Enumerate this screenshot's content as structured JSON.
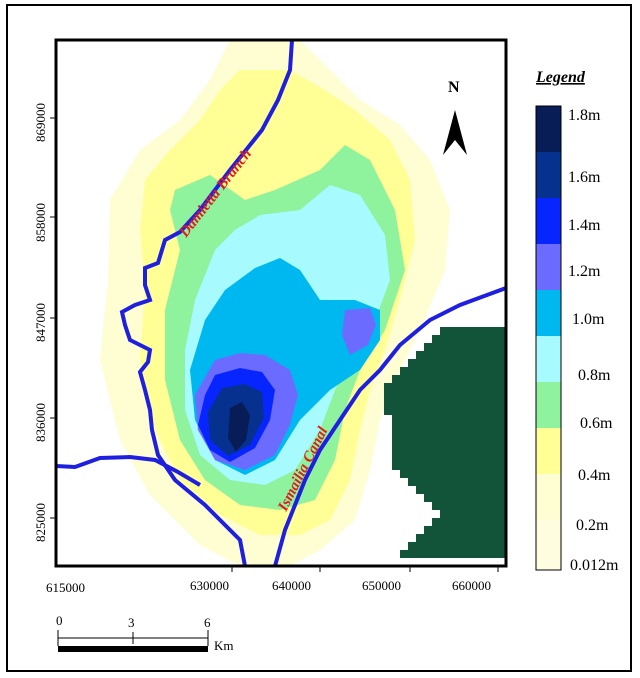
{
  "map": {
    "north_label": "N",
    "x_ticks": [
      "615000",
      "630000",
      "640000",
      "650000",
      "660000"
    ],
    "y_ticks": [
      "869000",
      "858000",
      "847000",
      "836000",
      "825000"
    ],
    "rivers": {
      "damietta": "Damietta Branch",
      "ismailia": "Ismailia Canal"
    }
  },
  "legend": {
    "title": "Legend",
    "items": [
      {
        "label": "1.8m",
        "color": "#081d58"
      },
      {
        "label": "1.6m",
        "color": "#06318f"
      },
      {
        "label": "1.4m",
        "color": "#0726ff"
      },
      {
        "label": "1.2m",
        "color": "#6b6bff"
      },
      {
        "label": "1.0m",
        "color": "#00b8f0"
      },
      {
        "label": "0.8m",
        "color": "#a7fbff"
      },
      {
        "label": "0.6m",
        "color": "#8ff29d"
      },
      {
        "label": "0.4m",
        "color": "#ffff96"
      },
      {
        "label": "0.2m",
        "color": "#fffdd2"
      },
      {
        "label": "0.012m",
        "color": "#ffffff"
      }
    ]
  },
  "scale_bar": {
    "ticks": [
      "0",
      "3",
      "6"
    ],
    "unit": "Km"
  },
  "colors": {
    "water": "#1f1fe0",
    "forest": "#12543a",
    "river_label": "#e31a1c"
  }
}
